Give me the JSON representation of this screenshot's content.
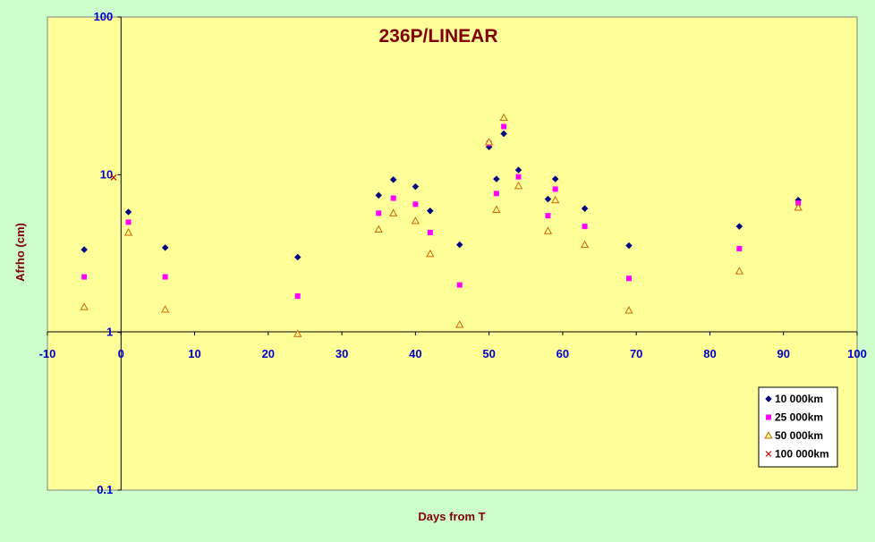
{
  "chart_data": {
    "type": "scatter",
    "title": "236P/LINEAR",
    "xlabel": "Days from T",
    "ylabel": "Afrho (cm)",
    "xlim": [
      -10,
      100
    ],
    "ylim": [
      0.1,
      100
    ],
    "yscale": "log",
    "x_ticks": [
      "-10",
      "0",
      "10",
      "20",
      "30",
      "40",
      "50",
      "60",
      "70",
      "80",
      "90",
      "100"
    ],
    "y_ticks": [
      "0.1",
      "1",
      "10",
      "100"
    ],
    "grid": false,
    "legend_position": "bottom-right",
    "colors": {
      "plot_background": "#ffff99",
      "page_background": "#ccffcc",
      "title": "#800000",
      "tick_labels": "#0000cc"
    },
    "series": [
      {
        "name": "10 000km",
        "marker": "diamond",
        "color": "#000080",
        "points": [
          [
            -5,
            3.35
          ],
          [
            1,
            5.8
          ],
          [
            6,
            3.45
          ],
          [
            24,
            3.0
          ],
          [
            35,
            7.4
          ],
          [
            37,
            9.3
          ],
          [
            40,
            8.4
          ],
          [
            42,
            5.9
          ],
          [
            46,
            3.6
          ],
          [
            50,
            15.0
          ],
          [
            51,
            9.4
          ],
          [
            52,
            18.2
          ],
          [
            54,
            10.7
          ],
          [
            58,
            7.0
          ],
          [
            59,
            9.4
          ],
          [
            63,
            6.1
          ],
          [
            69,
            3.55
          ],
          [
            84,
            4.7
          ],
          [
            92,
            6.9
          ]
        ]
      },
      {
        "name": "25 000km",
        "marker": "square",
        "color": "#ff00ff",
        "points": [
          [
            -5,
            2.25
          ],
          [
            1,
            5.0
          ],
          [
            6,
            2.25
          ],
          [
            24,
            1.7
          ],
          [
            35,
            5.7
          ],
          [
            37,
            7.1
          ],
          [
            40,
            6.5
          ],
          [
            42,
            4.3
          ],
          [
            46,
            2.0
          ],
          [
            50,
            15.8
          ],
          [
            51,
            7.6
          ],
          [
            52,
            20.2
          ],
          [
            54,
            9.7
          ],
          [
            58,
            5.5
          ],
          [
            59,
            8.1
          ],
          [
            63,
            4.7
          ],
          [
            69,
            2.2
          ],
          [
            84,
            3.4
          ],
          [
            92,
            6.6
          ]
        ]
      },
      {
        "name": "50 000km",
        "marker": "triangle",
        "color": "#cc6600",
        "points": [
          [
            -5,
            1.45
          ],
          [
            1,
            4.3
          ],
          [
            6,
            1.4
          ],
          [
            24,
            0.98
          ],
          [
            35,
            4.5
          ],
          [
            37,
            5.7
          ],
          [
            40,
            5.1
          ],
          [
            42,
            3.15
          ],
          [
            46,
            1.12
          ],
          [
            50,
            16.1
          ],
          [
            51,
            6.0
          ],
          [
            52,
            23.0
          ],
          [
            54,
            8.5
          ],
          [
            58,
            4.4
          ],
          [
            59,
            6.9
          ],
          [
            63,
            3.6
          ],
          [
            69,
            1.38
          ],
          [
            84,
            2.45
          ],
          [
            92,
            6.2
          ]
        ]
      },
      {
        "name": "100 000km",
        "marker": "x",
        "color": "#cc0000",
        "points": [
          [
            -1,
            9.6
          ]
        ]
      }
    ]
  }
}
